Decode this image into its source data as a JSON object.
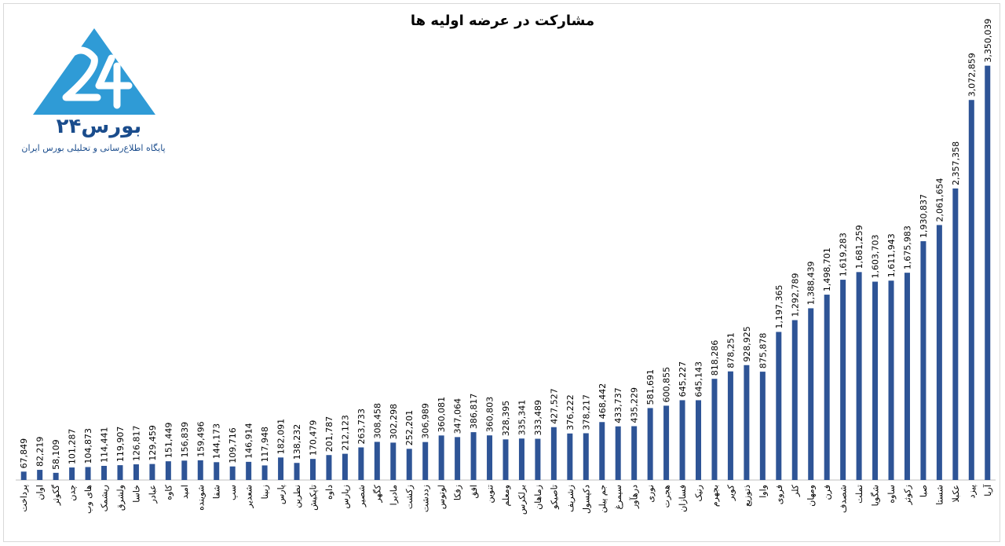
{
  "chart_data": {
    "type": "bar",
    "title": "مشارکت در عرضه اولیه ها",
    "categories": [
      "پرداخت",
      "اوان",
      "گکوثر",
      "چدن",
      "های وب",
      "ریشمک",
      "ولشرق",
      "خاسا",
      "عبادر",
      "کاوه",
      "امید",
      "شوینده",
      "شفا",
      "سپ",
      "شعدیر",
      "زبینا",
      "پارس",
      "نطرین",
      "تاپکیش",
      "داوه",
      "زپارس",
      "شصیر",
      "کگهر",
      "مادیرا",
      "زکشت",
      "زددشت",
      "لوتوس",
      "زفکا",
      "افق",
      "تنوین",
      "ومعلم",
      "برلکرس",
      "زماهان",
      "تاصیکو",
      "زشریف",
      "دکپسول",
      "جم پیلن",
      "سیمرغ",
      "درهآور",
      "نوری",
      "هجرت",
      "فسازان",
      "رنیک",
      "بجهرم",
      "کویر",
      "ذتوزیع",
      "واوا",
      "فروی",
      "کلر",
      "ومهان",
      "فرن",
      "شصدف",
      "تملت",
      "شگویا",
      "ساوه",
      "زکوثر",
      "صبا",
      "شستا",
      "عکبلا",
      "پیزد",
      "آریا"
    ],
    "values": [
      67849,
      82219,
      58109,
      101287,
      104873,
      114441,
      119907,
      126817,
      129459,
      151449,
      156839,
      159496,
      144173,
      109716,
      146914,
      117948,
      182091,
      138232,
      170479,
      201787,
      212123,
      263733,
      308458,
      302298,
      252201,
      306989,
      360081,
      347064,
      386817,
      360803,
      328395,
      335341,
      333489,
      427527,
      376222,
      378217,
      468442,
      433737,
      435229,
      581691,
      600855,
      645227,
      645143,
      818286,
      878251,
      928925,
      875878,
      1197365,
      1292789,
      1388439,
      1498701,
      1619283,
      1681259,
      1603703,
      1611943,
      1675983,
      1930837,
      2061654,
      2357358,
      3072859,
      3350039
    ],
    "value_labels": [
      "67,849",
      "82,219",
      "58,109",
      "101,287",
      "104,873",
      "114,441",
      "119,907",
      "126,817",
      "129,459",
      "151,449",
      "156,839",
      "159,496",
      "144,173",
      "109,716",
      "146,914",
      "117,948",
      "182,091",
      "138,232",
      "170,479",
      "201,787",
      "212,123",
      "263,733",
      "308,458",
      "302,298",
      "252,201",
      "306,989",
      "360,081",
      "347,064",
      "386,817",
      "360,803",
      "328,395",
      "335,341",
      "333,489",
      "427,527",
      "376,222",
      "378,217",
      "468,442",
      "433,737",
      "435,229",
      "581,691",
      "600,855",
      "645,227",
      "645,143",
      "818,286",
      "878,251",
      "928,925",
      "875,878",
      "1,197,365",
      "1,292,789",
      "1,388,439",
      "1,498,701",
      "1,619,283",
      "1,681,259",
      "1,603,703",
      "1,611,943",
      "1,675,983",
      "1,930,837",
      "2,061,654",
      "2,357,358",
      "3,072,859",
      "3,350,039"
    ],
    "bar_color": "#2e5496",
    "ylim": [
      0,
      3500000
    ],
    "grid": false,
    "legend": "none"
  },
  "logo": {
    "name": "بورس۲۴",
    "subtitle": "پایگاه اطلاع‌رسانی و تحلیلی بورس ایران",
    "color": "#2f9bd6"
  }
}
